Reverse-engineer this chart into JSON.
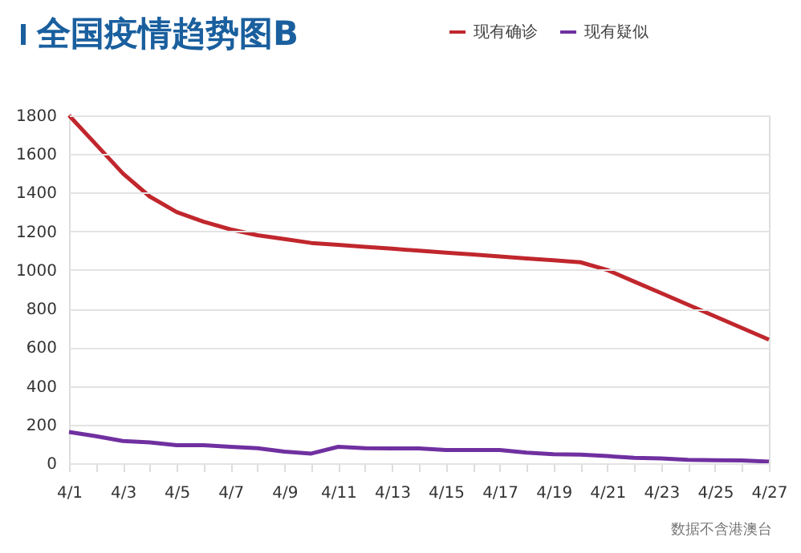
{
  "chart_data": {
    "type": "line",
    "title": "全国疫情趋势图B",
    "categories": [
      "4/1",
      null,
      "4/3",
      null,
      "4/5",
      null,
      "4/7",
      null,
      "4/9",
      null,
      "4/11",
      null,
      "4/13",
      null,
      "4/15",
      null,
      "4/17",
      null,
      "4/19",
      null,
      "4/21",
      null,
      "4/23",
      null,
      "4/25",
      null,
      "4/27"
    ],
    "series": [
      {
        "name": "现有确诊",
        "color": "#c0272d",
        "values": [
          1800,
          1650,
          1500,
          1380,
          1300,
          1250,
          1210,
          1180,
          1160,
          1140,
          1130,
          1120,
          1110,
          1100,
          1090,
          1080,
          1070,
          1060,
          1050,
          1040,
          1000,
          940,
          880,
          820,
          760,
          700,
          640
        ]
      },
      {
        "name": "现有疑似",
        "color": "#7030a0",
        "values": [
          162,
          140,
          115,
          108,
          93,
          93,
          85,
          78,
          60,
          50,
          85,
          78,
          77,
          77,
          68,
          68,
          68,
          55,
          47,
          45,
          37,
          28,
          25,
          18,
          16,
          15,
          8
        ]
      }
    ],
    "ylim": [
      0,
      1800
    ],
    "yticks": [
      0,
      200,
      400,
      600,
      800,
      1000,
      1200,
      1400,
      1600,
      1800
    ],
    "grid": "y",
    "legend": "top right",
    "marker": "none",
    "line_style": "solid",
    "annotations": [
      "数据不含港澳台"
    ]
  }
}
